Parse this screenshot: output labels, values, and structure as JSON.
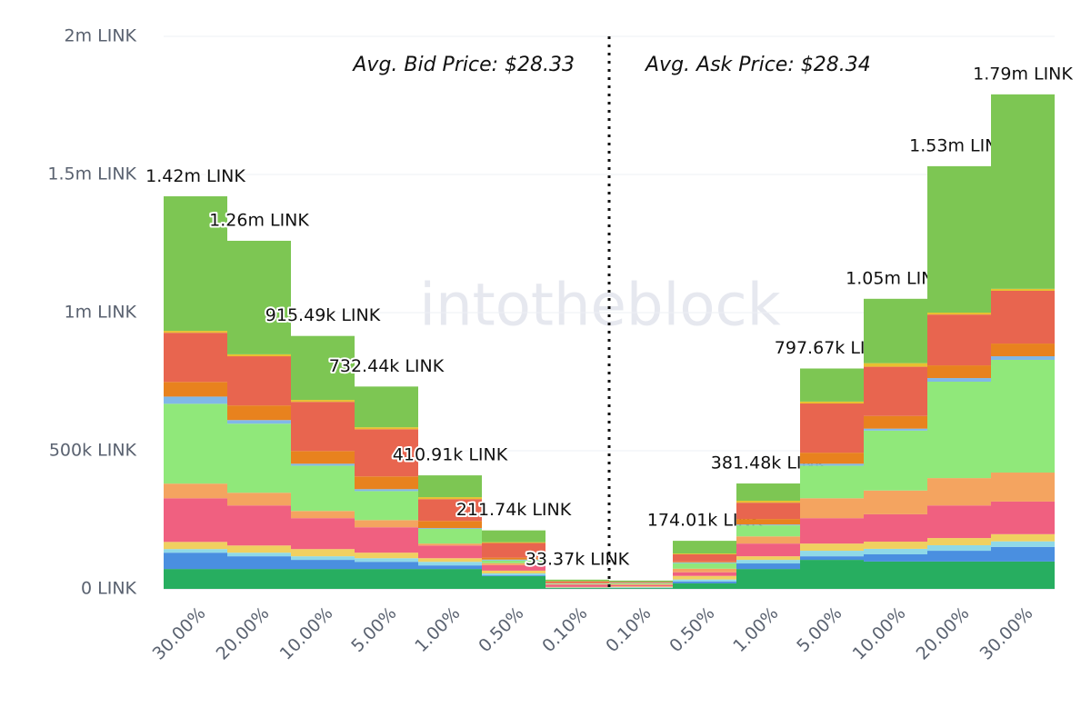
{
  "chart_data": {
    "type": "stacked-bar",
    "categories": [
      "30.00%",
      "20.00%",
      "10.00%",
      "5.00%",
      "1.00%",
      "0.50%",
      "0.10%",
      "0.10%",
      "0.50%",
      "1.00%",
      "5.00%",
      "10.00%",
      "20.00%",
      "30.00%"
    ],
    "series": [
      {
        "color": "#27ae60",
        "values": [
          72000,
          72000,
          72000,
          72000,
          72000,
          46000,
          3000,
          3000,
          20000,
          72000,
          105000,
          99000,
          99000,
          99000
        ]
      },
      {
        "color": "#4a8fe0",
        "values": [
          59000,
          46000,
          33000,
          26000,
          13000,
          3000,
          1000,
          1000,
          7000,
          20000,
          13000,
          26000,
          39000,
          53000
        ]
      },
      {
        "color": "#8fd9e8",
        "values": [
          13000,
          13000,
          13000,
          13000,
          13000,
          7000,
          1000,
          2000,
          7000,
          13000,
          20000,
          20000,
          20000,
          20000
        ]
      },
      {
        "color": "#f0d060",
        "values": [
          26000,
          26000,
          26000,
          20000,
          13000,
          10000,
          2000,
          3000,
          13000,
          13000,
          26000,
          26000,
          26000,
          26000
        ]
      },
      {
        "color": "#f06080",
        "values": [
          158000,
          145000,
          112000,
          92000,
          46000,
          20000,
          8000,
          5000,
          13000,
          46000,
          92000,
          99000,
          118000,
          118000
        ]
      },
      {
        "color": "#f4a460",
        "values": [
          53000,
          46000,
          26000,
          26000,
          7000,
          7000,
          2000,
          3000,
          13000,
          26000,
          72000,
          86000,
          99000,
          105000
        ]
      },
      {
        "color": "#90e87a",
        "values": [
          289000,
          250000,
          164000,
          105000,
          53000,
          10000,
          2000,
          3000,
          20000,
          40000,
          118000,
          217000,
          349000,
          408000
        ]
      },
      {
        "color": "#80b8e8",
        "values": [
          26000,
          13000,
          7000,
          7000,
          3000,
          3000,
          1000,
          1000,
          3000,
          3000,
          7000,
          7000,
          13000,
          13000
        ]
      },
      {
        "color": "#e8821e",
        "values": [
          53000,
          53000,
          46000,
          46000,
          26000,
          7000,
          2000,
          1000,
          3000,
          20000,
          40000,
          46000,
          46000,
          46000
        ]
      },
      {
        "color": "#e8654f",
        "values": [
          178000,
          178000,
          178000,
          171000,
          79000,
          53000,
          5000,
          3000,
          26000,
          59000,
          178000,
          178000,
          184000,
          191000
        ]
      },
      {
        "color": "#e8c030",
        "values": [
          7000,
          7000,
          7000,
          7000,
          7000,
          3000,
          1000,
          0,
          3000,
          7000,
          7000,
          13000,
          7000,
          7000
        ]
      },
      {
        "color": "#7dc653",
        "values": [
          487000,
          411000,
          231500,
          147400,
          78900,
          42700,
          5370,
          5000,
          46000,
          62500,
          119700,
          233000,
          530000,
          704000
        ]
      }
    ],
    "totals": {
      "values": [
        1420000,
        1260000,
        915490,
        732440,
        410910,
        211740,
        33370,
        null,
        174010,
        381480,
        797670,
        1050000,
        1530000,
        1790000
      ],
      "value_labels": [
        "1.42m LINK",
        "1.26m LINK",
        "915.49k LINK",
        "732.44k LINK",
        "410.91k LINK",
        "211.74k LINK",
        "33.37k LINK",
        null,
        "174.01k LINK",
        "381.48k LINK",
        "797.67k LINK",
        "1.05m LINK",
        "1.53m LINK",
        "1.79m LINK"
      ]
    },
    "annotations": [
      "Avg. Bid Price: $28.33",
      "Avg. Ask Price: $28.34"
    ],
    "watermark": "intotheblock",
    "ylim": [
      0,
      2000000
    ],
    "yticks": [
      {
        "value": 0,
        "label": "0 LINK"
      },
      {
        "value": 500000,
        "label": "500k LINK"
      },
      {
        "value": 1000000,
        "label": "1m LINK"
      },
      {
        "value": 1500000,
        "label": "1.5m LINK"
      },
      {
        "value": 2000000,
        "label": "2m LINK"
      }
    ],
    "grid": true
  }
}
